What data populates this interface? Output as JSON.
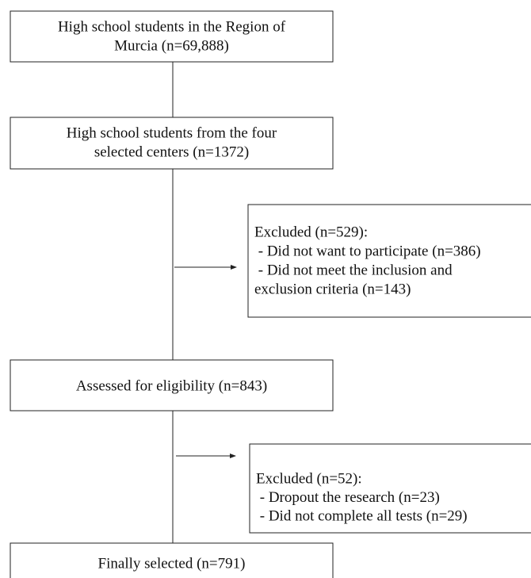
{
  "nodes": [
    {
      "lines": [
        "High school students in the Region of",
        "Murcia (n=69,888)"
      ]
    },
    {
      "lines": [
        "High school students from the four",
        "selected centers (n=1372)"
      ]
    },
    {
      "lines": [
        "Excluded (n=529):",
        " - Did not want to participate (n=386)",
        " - Did not meet the inclusion and",
        "exclusion criteria (n=143)"
      ]
    },
    {
      "lines": [
        "Assessed for eligibility (n=843)"
      ]
    },
    {
      "lines": [
        "Excluded (n=52):",
        " - Dropout the research (n=23)",
        " - Did not complete all tests (n=29)"
      ]
    },
    {
      "lines": [
        "Finally selected (n=791)"
      ]
    }
  ]
}
